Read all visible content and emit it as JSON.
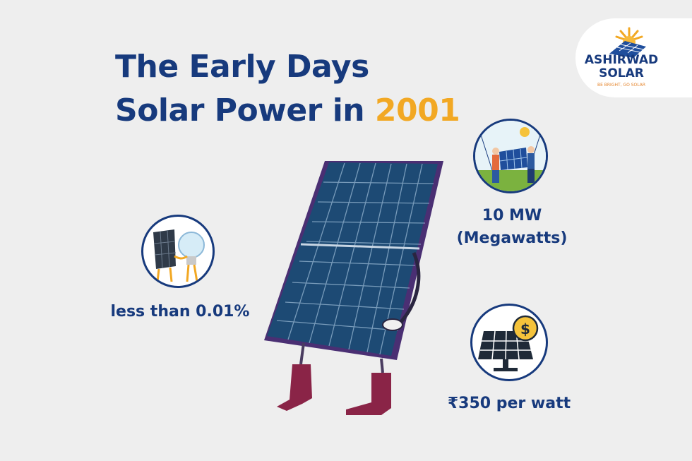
{
  "title": {
    "line1": "The Early Days",
    "line2_prefix": "Solar Power in ",
    "year": "2001"
  },
  "logo": {
    "brand_line1": "ASHIRWAD",
    "brand_line2": "SOLAR",
    "tagline": "BE BRIGHT, GO SOLAR"
  },
  "stats": {
    "capacity_line1": "10 MW",
    "capacity_line2": "(Megawatts)",
    "share": "less than 0.01%",
    "price": "₹350 per watt"
  },
  "colors": {
    "primary": "#173a7d",
    "accent": "#f2a823",
    "background": "#eeeeee"
  },
  "icons": {
    "capacity": "workers-carrying-panel-icon",
    "share": "panel-and-bulb-handshake-icon",
    "price": "solar-panel-dollar-icon",
    "hero": "solar-panel-mascot-illustration"
  }
}
